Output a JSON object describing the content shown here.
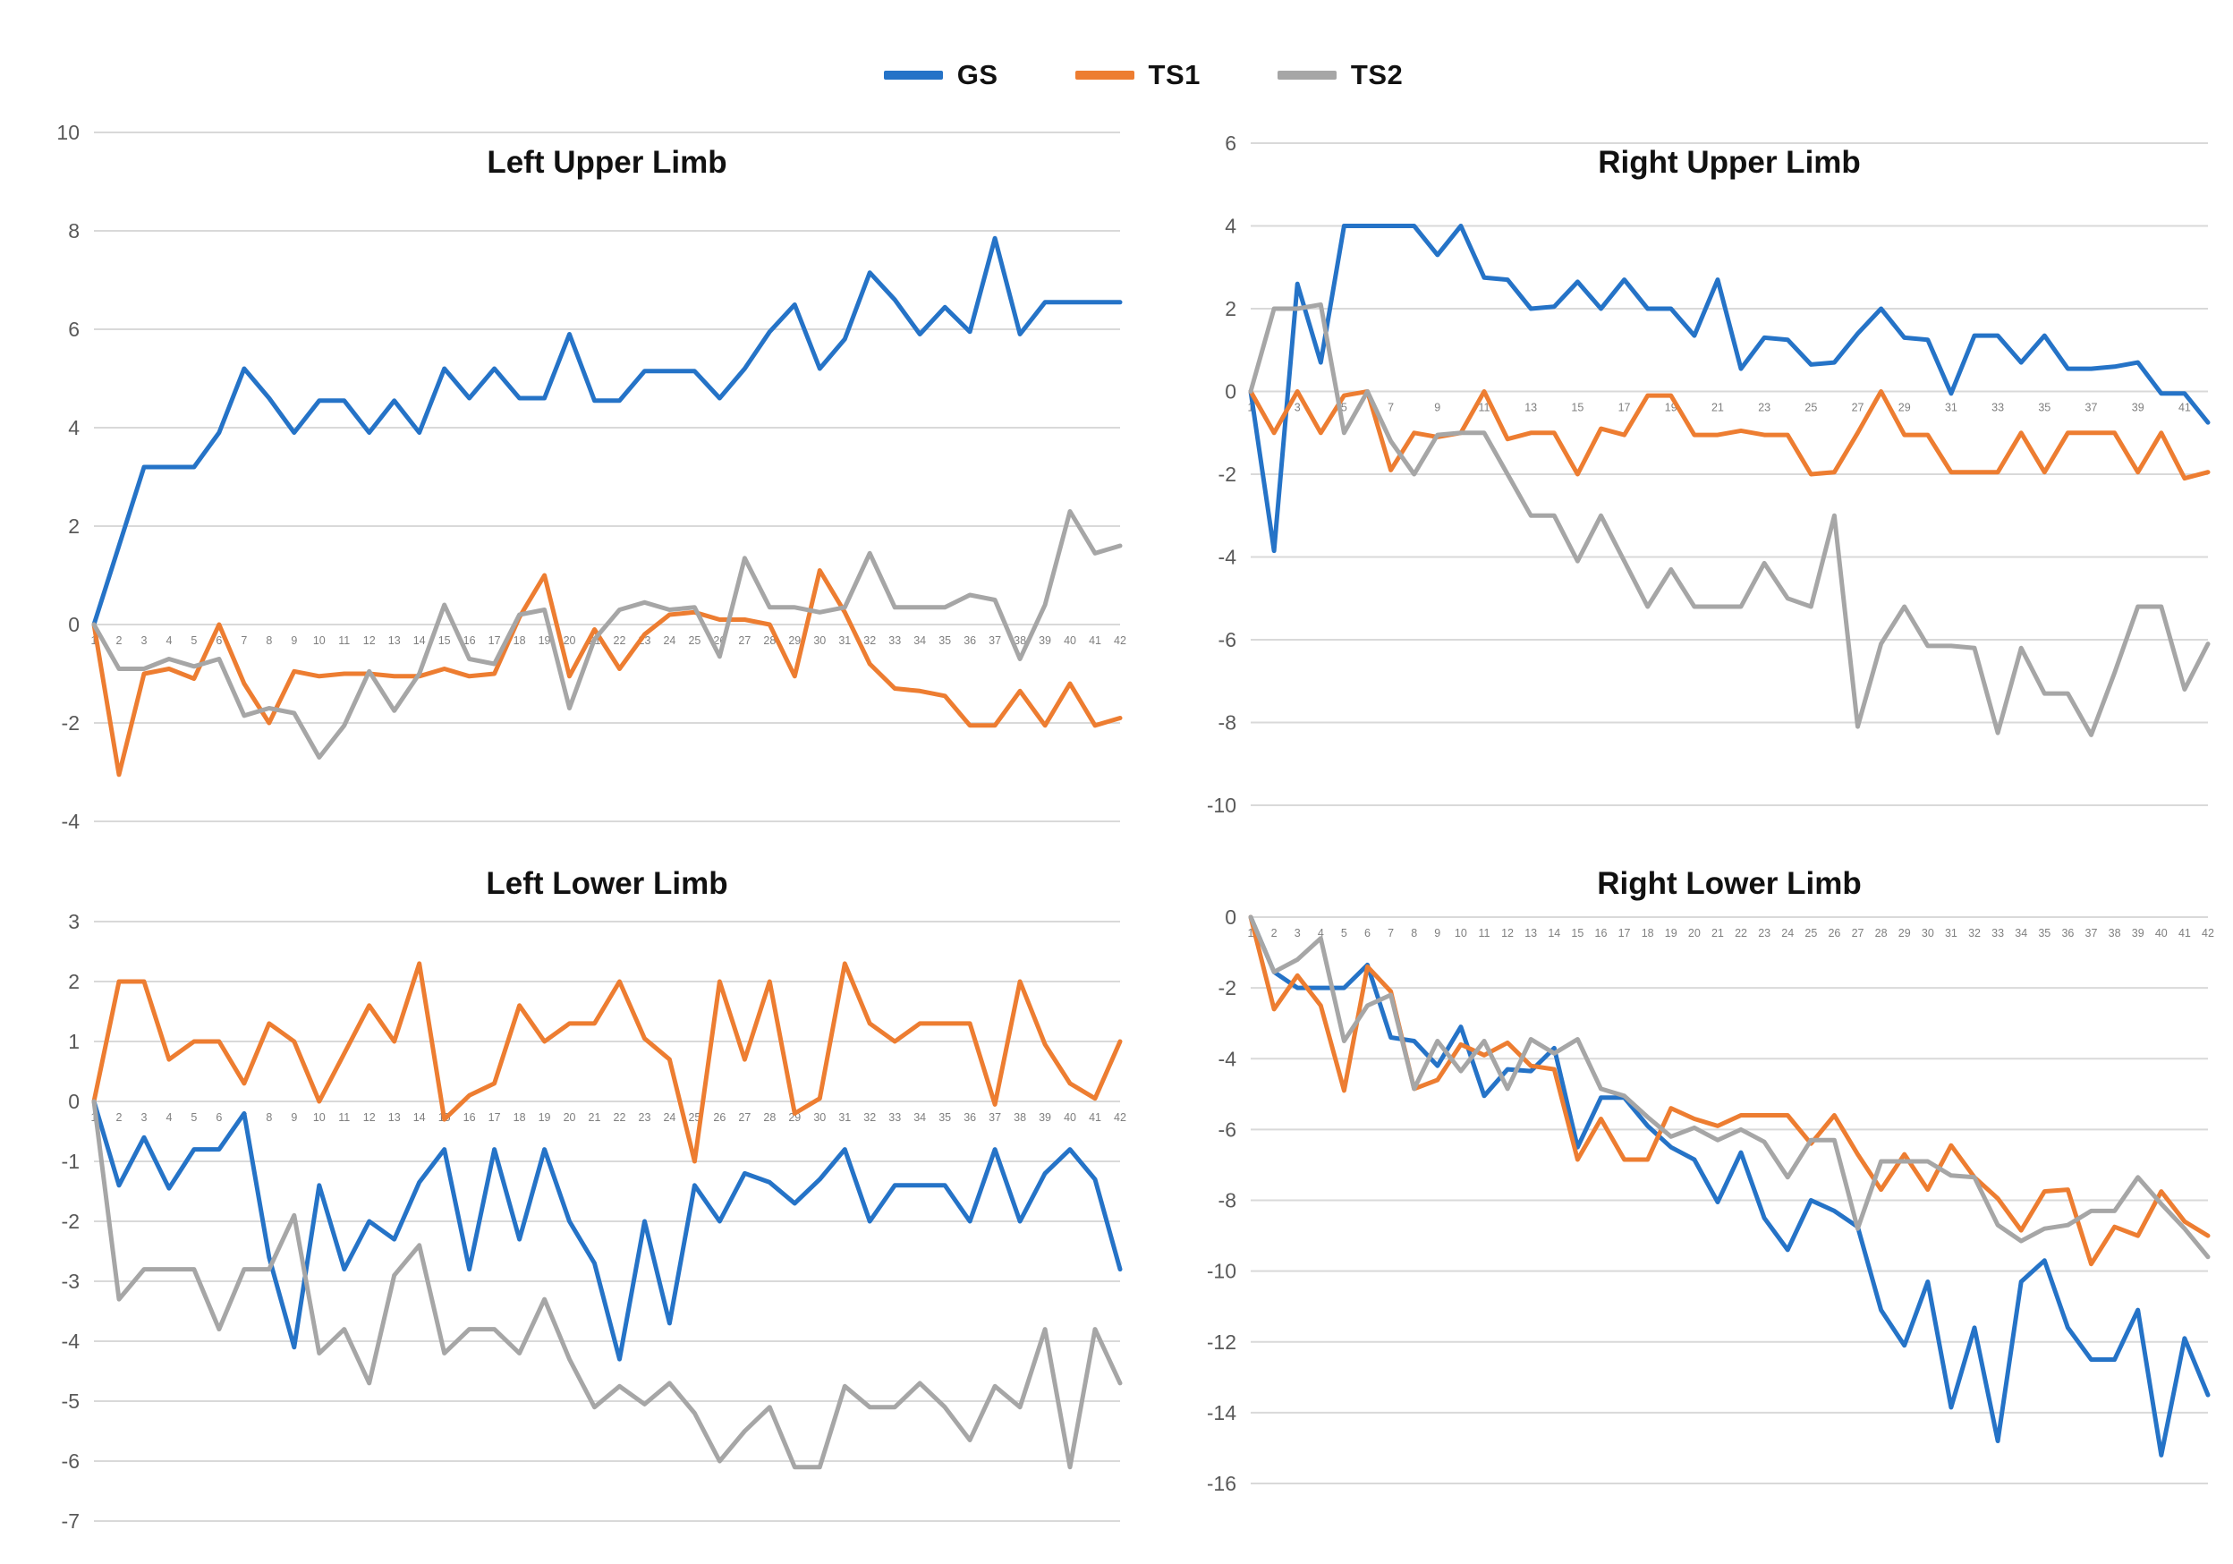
{
  "legend": {
    "items": [
      {
        "label": "GS",
        "color": "#2573C7"
      },
      {
        "label": "TS1",
        "color": "#ED7D31"
      },
      {
        "label": "TS2",
        "color": "#A6A6A6"
      }
    ]
  },
  "colors": {
    "gridline": "#D9D9D9",
    "y_tick_text": "#595959",
    "x_tick_text": "#7F7F7F",
    "title_text": "#111111"
  },
  "chart_data": [
    {
      "type": "line",
      "title": "Left Upper Limb",
      "x_start": 1,
      "x_count": 42,
      "x_label_step": 1,
      "ylim": [
        -4,
        10
      ],
      "y_ticks": [
        "10",
        "8",
        "6",
        "4",
        "2",
        "0",
        "-2",
        "-4"
      ],
      "grid": true,
      "legend_position": "top",
      "series": [
        {
          "name": "GS",
          "values": [
            0,
            1.6,
            3.2,
            3.2,
            3.2,
            3.9,
            5.2,
            4.6,
            3.9,
            4.55,
            4.55,
            3.9,
            4.55,
            3.9,
            5.2,
            4.6,
            5.2,
            4.6,
            4.6,
            5.9,
            4.55,
            4.55,
            5.15,
            5.15,
            5.15,
            4.6,
            5.2,
            5.95,
            6.5,
            5.2,
            5.8,
            7.15,
            6.6,
            5.9,
            6.45,
            5.95,
            7.85,
            5.9,
            6.55,
            6.55,
            6.55,
            6.55
          ]
        },
        {
          "name": "TS1",
          "values": [
            0,
            -3.05,
            -1,
            -0.9,
            -1.1,
            0,
            -1.2,
            -2,
            -0.95,
            -1.05,
            -1,
            -1,
            -1.05,
            -1.05,
            -0.9,
            -1.05,
            -1,
            0.15,
            1,
            -1.05,
            -0.1,
            -0.9,
            -0.2,
            0.2,
            0.25,
            0.1,
            0.1,
            0,
            -1.05,
            1.1,
            0.25,
            -0.8,
            -1.3,
            -1.35,
            -1.45,
            -2.05,
            -2.05,
            -1.35,
            -2.05,
            -1.2,
            -2.05,
            -1.9
          ]
        },
        {
          "name": "TS2",
          "values": [
            0,
            -0.9,
            -0.9,
            -0.7,
            -0.85,
            -0.7,
            -1.85,
            -1.7,
            -1.8,
            -2.7,
            -2.05,
            -0.95,
            -1.75,
            -1,
            0.4,
            -0.7,
            -0.8,
            0.2,
            0.3,
            -1.7,
            -0.3,
            0.3,
            0.45,
            0.3,
            0.35,
            -0.65,
            1.35,
            0.35,
            0.35,
            0.25,
            0.35,
            1.45,
            0.35,
            0.35,
            0.35,
            0.6,
            0.5,
            -0.7,
            0.4,
            2.3,
            1.45,
            1.6
          ]
        }
      ]
    },
    {
      "type": "line",
      "title": "Right Upper Limb",
      "x_start": 1,
      "x_count": 42,
      "x_label_step": 2,
      "ylim": [
        -10,
        6
      ],
      "y_ticks": [
        "6",
        "4",
        "2",
        "0",
        "-2",
        "-4",
        "-6",
        "-8",
        "-10"
      ],
      "grid": true,
      "legend_position": "top",
      "series": [
        {
          "name": "GS",
          "values": [
            0,
            -3.85,
            2.6,
            0.7,
            4,
            4,
            4,
            4,
            3.3,
            4,
            2.75,
            2.7,
            2,
            2.05,
            2.65,
            2,
            2.7,
            2,
            2,
            1.35,
            2.7,
            0.55,
            1.3,
            1.25,
            0.65,
            0.7,
            1.4,
            2,
            1.3,
            1.25,
            -0.05,
            1.35,
            1.35,
            0.7,
            1.35,
            0.55,
            0.55,
            0.6,
            0.7,
            -0.05,
            -0.05,
            -0.75
          ]
        },
        {
          "name": "TS1",
          "values": [
            0,
            -1,
            0,
            -1,
            -0.1,
            0,
            -1.9,
            -1,
            -1.1,
            -1,
            0,
            -1.15,
            -1,
            -1,
            -2,
            -0.9,
            -1.05,
            -0.1,
            -0.1,
            -1.05,
            -1.05,
            -0.95,
            -1.05,
            -1.05,
            -2,
            -1.95,
            -1,
            0,
            -1.05,
            -1.05,
            -1.95,
            -1.95,
            -1.95,
            -1,
            -1.95,
            -1,
            -1,
            -1,
            -1.95,
            -1,
            -2.1,
            -1.95
          ]
        },
        {
          "name": "TS2",
          "values": [
            0,
            2,
            2,
            2.1,
            -1,
            0,
            -1.2,
            -2,
            -1.05,
            -1,
            -1,
            -2,
            -3,
            -3,
            -4.1,
            -3,
            -4.1,
            -5.2,
            -4.3,
            -5.2,
            -5.2,
            -5.2,
            -4.15,
            -5,
            -5.2,
            -3,
            -8.1,
            -6.1,
            -5.2,
            -6.15,
            -6.15,
            -6.2,
            -8.25,
            -6.2,
            -7.3,
            -7.3,
            -8.3,
            -6.8,
            -5.2,
            -5.2,
            -7.2,
            -6.1
          ]
        }
      ]
    },
    {
      "type": "line",
      "title": "Left Lower Limb",
      "x_start": 1,
      "x_count": 42,
      "x_label_step": 1,
      "ylim": [
        -7,
        3
      ],
      "y_ticks": [
        "3",
        "2",
        "1",
        "0",
        "-1",
        "-2",
        "-3",
        "-4",
        "-5",
        "-6",
        "-7"
      ],
      "grid": true,
      "legend_position": "top",
      "series": [
        {
          "name": "GS",
          "values": [
            0,
            -1.4,
            -0.6,
            -1.45,
            -0.8,
            -0.8,
            -0.2,
            -2.6,
            -4.1,
            -1.4,
            -2.8,
            -2,
            -2.3,
            -1.35,
            -0.8,
            -2.8,
            -0.8,
            -2.3,
            -0.8,
            -2,
            -2.7,
            -4.3,
            -2,
            -3.7,
            -1.4,
            -2,
            -1.2,
            -1.35,
            -1.7,
            -1.3,
            -0.8,
            -2,
            -1.4,
            -1.4,
            -1.4,
            -2,
            -0.8,
            -2,
            -1.2,
            -0.8,
            -1.3,
            -2.8
          ]
        },
        {
          "name": "TS1",
          "values": [
            0,
            2,
            2,
            0.7,
            1,
            1,
            0.3,
            1.3,
            1,
            0,
            0.8,
            1.6,
            1,
            2.3,
            -0.3,
            0.1,
            0.3,
            1.6,
            1,
            1.3,
            1.3,
            2,
            1.05,
            0.7,
            -1,
            2,
            0.7,
            2,
            -0.2,
            0.05,
            2.3,
            1.3,
            1,
            1.3,
            1.3,
            1.3,
            -0.05,
            2,
            0.95,
            0.3,
            0.05,
            1
          ]
        },
        {
          "name": "TS2",
          "values": [
            0,
            -3.3,
            -2.8,
            -2.8,
            -2.8,
            -3.8,
            -2.8,
            -2.8,
            -1.9,
            -4.2,
            -3.8,
            -4.7,
            -2.9,
            -2.4,
            -4.2,
            -3.8,
            -3.8,
            -4.2,
            -3.3,
            -4.3,
            -5.1,
            -4.75,
            -5.05,
            -4.7,
            -5.2,
            -6,
            -5.5,
            -5.1,
            -6.1,
            -6.1,
            -4.75,
            -5.1,
            -5.1,
            -4.7,
            -5.1,
            -5.65,
            -4.75,
            -5.1,
            -3.8,
            -6.1,
            -3.8,
            -4.7
          ]
        }
      ]
    },
    {
      "type": "line",
      "title": "Right Lower Limb",
      "x_start": 1,
      "x_count": 42,
      "x_label_step": 1,
      "ylim": [
        -16,
        0
      ],
      "y_ticks": [
        "0",
        "-2",
        "-4",
        "-6",
        "-8",
        "-10",
        "-12",
        "-14",
        "-16"
      ],
      "grid": true,
      "legend_position": "top",
      "series": [
        {
          "name": "GS",
          "values": [
            0,
            -1.55,
            -2,
            -2,
            -2,
            -1.35,
            -3.4,
            -3.5,
            -4.2,
            -3.1,
            -5.05,
            -4.3,
            -4.35,
            -3.7,
            -6.5,
            -5.1,
            -5.1,
            -5.9,
            -6.5,
            -6.85,
            -8.05,
            -6.65,
            -8.5,
            -9.4,
            -8,
            -8.3,
            -8.75,
            -11.1,
            -12.1,
            -10.3,
            -13.85,
            -11.6,
            -14.8,
            -10.3,
            -9.7,
            -11.6,
            -12.5,
            -12.5,
            -11.1,
            -15.2,
            -11.9,
            -13.5
          ]
        },
        {
          "name": "TS1",
          "values": [
            0,
            -2.6,
            -1.65,
            -2.5,
            -4.9,
            -1.4,
            -2.1,
            -4.85,
            -4.6,
            -3.6,
            -3.9,
            -3.55,
            -4.2,
            -4.3,
            -6.85,
            -5.7,
            -6.85,
            -6.85,
            -5.4,
            -5.7,
            -5.9,
            -5.6,
            -5.6,
            -5.6,
            -6.4,
            -5.6,
            -6.7,
            -7.7,
            -6.7,
            -7.7,
            -6.45,
            -7.35,
            -7.95,
            -8.85,
            -7.75,
            -7.7,
            -9.8,
            -8.75,
            -9,
            -7.75,
            -8.6,
            -9
          ]
        },
        {
          "name": "TS2",
          "values": [
            0,
            -1.55,
            -1.2,
            -0.6,
            -3.5,
            -2.5,
            -2.2,
            -4.85,
            -3.5,
            -4.35,
            -3.5,
            -4.85,
            -3.45,
            -3.85,
            -3.45,
            -4.85,
            -5.05,
            -5.65,
            -6.2,
            -5.95,
            -6.3,
            -6,
            -6.35,
            -7.35,
            -6.3,
            -6.3,
            -8.8,
            -6.9,
            -6.9,
            -6.9,
            -7.3,
            -7.35,
            -8.7,
            -9.15,
            -8.8,
            -8.7,
            -8.3,
            -8.3,
            -7.35,
            -8.1,
            -8.8,
            -9.6
          ]
        }
      ]
    }
  ]
}
